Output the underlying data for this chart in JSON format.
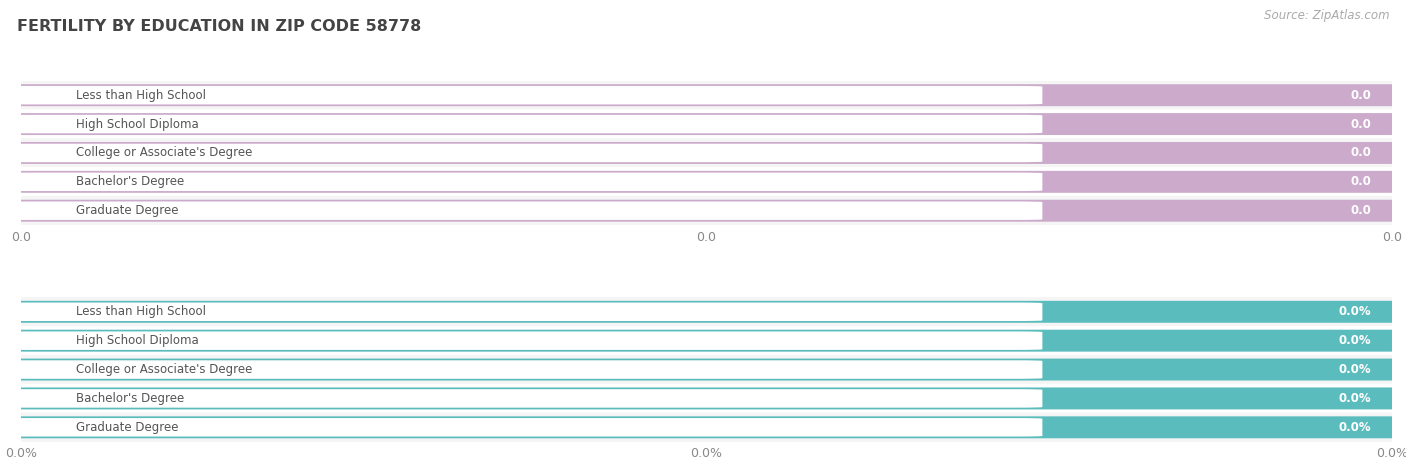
{
  "title": "FERTILITY BY EDUCATION IN ZIP CODE 58778",
  "source": "Source: ZipAtlas.com",
  "categories": [
    "Less than High School",
    "High School Diploma",
    "College or Associate's Degree",
    "Bachelor's Degree",
    "Graduate Degree"
  ],
  "values_top": [
    0.0,
    0.0,
    0.0,
    0.0,
    0.0
  ],
  "values_bottom": [
    0.0,
    0.0,
    0.0,
    0.0,
    0.0
  ],
  "bar_color_top": "#cbaacb",
  "bar_color_bottom": "#5bbcbe",
  "background_color": "#ffffff",
  "row_bg_even": "#f5f5f5",
  "row_bg_odd": "#ffffff",
  "title_color": "#444444",
  "source_color": "#aaaaaa",
  "label_text_color": "#555555",
  "value_text_color": "#ffffff",
  "x_tick_labels_top": [
    "0.0",
    "0.0",
    "0.0"
  ],
  "x_tick_labels_bottom": [
    "0.0%",
    "0.0%",
    "0.0%"
  ],
  "white_label_bg": "#ffffff",
  "grid_color": "#dddddd"
}
